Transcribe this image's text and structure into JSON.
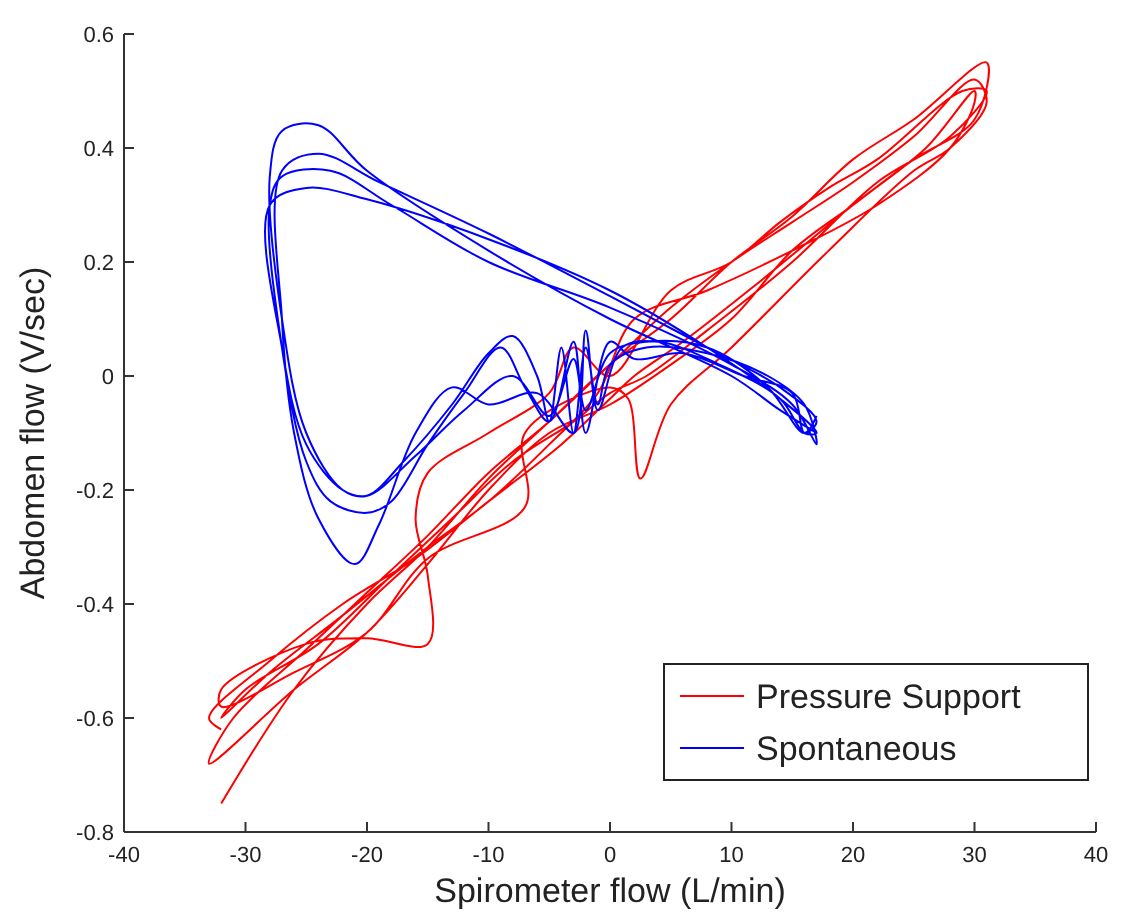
{
  "chart_data": {
    "type": "line",
    "xlabel": "Spirometer flow (L/min)",
    "ylabel": "Abdomen flow (V/sec)",
    "xlim": [
      -40,
      40
    ],
    "ylim": [
      -0.8,
      0.6
    ],
    "xticks": [
      -40,
      -30,
      -20,
      -10,
      0,
      10,
      20,
      30,
      40
    ],
    "yticks": [
      -0.8,
      -0.6,
      -0.4,
      -0.2,
      0,
      0.2,
      0.4,
      0.6
    ],
    "grid": false,
    "legend": "bottom right",
    "marker": "none",
    "line_style": "solid",
    "series": [
      {
        "name": "Pressure Support",
        "color": "#ff0000",
        "x": [
          -32,
          -26,
          -20,
          -15,
          -10,
          -5,
          0,
          5,
          10,
          15,
          20,
          25,
          31,
          30,
          25,
          20,
          15,
          10,
          5,
          0,
          -5,
          -10,
          -15,
          -20,
          -26,
          -33,
          -31,
          -25,
          -20,
          -15,
          -10,
          -5,
          0,
          5,
          10,
          15,
          20,
          25,
          30,
          31,
          28,
          25,
          18,
          10,
          5,
          2.5,
          1.5,
          0,
          -7,
          -7,
          -15,
          -20,
          -26,
          -32,
          -32,
          -25,
          -20,
          -15,
          -15,
          -16,
          -15,
          -10,
          -5,
          -3,
          0,
          5,
          10,
          14,
          18,
          22,
          29,
          31,
          28,
          22,
          15,
          8,
          3,
          0,
          -3,
          -8,
          -13,
          -18,
          -24,
          -30,
          -32,
          -28,
          -22,
          -15,
          -10,
          -5,
          -1,
          2,
          8,
          15,
          22,
          28,
          30,
          30,
          26,
          20,
          12,
          6,
          2,
          0,
          -4,
          -10,
          -16,
          -22,
          -28,
          -33,
          -32
        ],
        "values": [
          -0.75,
          -0.55,
          -0.4,
          -0.3,
          -0.18,
          -0.08,
          0.02,
          0.1,
          0.2,
          0.28,
          0.38,
          0.45,
          0.55,
          0.45,
          0.38,
          0.3,
          0.22,
          0.1,
          0.02,
          -0.05,
          -0.1,
          -0.2,
          -0.33,
          -0.45,
          -0.55,
          -0.68,
          -0.6,
          -0.48,
          -0.38,
          -0.28,
          -0.17,
          -0.08,
          0.02,
          0.12,
          0.2,
          0.27,
          0.34,
          0.42,
          0.52,
          0.48,
          0.4,
          0.36,
          0.22,
          0.05,
          -0.05,
          -0.18,
          -0.04,
          -0.02,
          -0.1,
          -0.23,
          -0.32,
          -0.45,
          -0.52,
          -0.58,
          -0.55,
          -0.47,
          -0.46,
          -0.47,
          -0.35,
          -0.25,
          -0.17,
          -0.1,
          -0.03,
          0.05,
          0.0,
          0.15,
          0.2,
          0.27,
          0.33,
          0.38,
          0.5,
          0.5,
          0.42,
          0.34,
          0.2,
          0.08,
          0.0,
          -0.03,
          -0.08,
          -0.15,
          -0.25,
          -0.35,
          -0.47,
          -0.55,
          -0.6,
          -0.52,
          -0.42,
          -0.3,
          -0.22,
          -0.12,
          -0.03,
          0.1,
          0.15,
          0.22,
          0.3,
          0.4,
          0.48,
          0.5,
          0.4,
          0.3,
          0.16,
          0.06,
          0.0,
          -0.04,
          -0.12,
          -0.22,
          -0.32,
          -0.4,
          -0.5,
          -0.6,
          -0.62
        ]
      },
      {
        "name": "Spontaneous",
        "color": "#0000ff",
        "x": [
          17,
          14,
          10,
          0,
          -10,
          -20,
          -24,
          -27,
          -28,
          -27,
          -25,
          -22,
          -20,
          -17,
          -13,
          -10,
          -8,
          -6,
          -5,
          -4,
          -3,
          -2,
          -1,
          0,
          3,
          8,
          13,
          16,
          17,
          15,
          10,
          0,
          -10,
          -18,
          -23,
          -27,
          -28,
          -27,
          -25,
          -23,
          -20,
          -18,
          -15,
          -12,
          -9,
          -7,
          -5,
          -3,
          -2,
          0,
          2,
          6,
          11,
          15,
          16,
          17,
          14,
          8,
          0,
          -10,
          -19,
          -24,
          -27,
          -27,
          -26,
          -24,
          -21,
          -19,
          -16,
          -13,
          -10,
          -6,
          -3,
          -2,
          -1,
          1,
          4,
          9,
          14,
          16,
          17,
          14,
          8,
          0,
          -10,
          -20,
          -25,
          -28,
          -27,
          -25,
          -22,
          -20,
          -16,
          -12,
          -8,
          -5,
          -3,
          -2,
          0,
          3,
          8,
          13,
          16,
          17
        ],
        "values": [
          -0.1,
          -0.06,
          0.0,
          0.1,
          0.22,
          0.36,
          0.44,
          0.43,
          0.35,
          0.1,
          -0.1,
          -0.2,
          -0.21,
          -0.15,
          -0.05,
          0.04,
          0.07,
          0.0,
          -0.08,
          0.05,
          -0.1,
          0.05,
          -0.05,
          0.02,
          0.05,
          0.04,
          0.0,
          -0.05,
          -0.12,
          -0.05,
          0.02,
          0.12,
          0.2,
          0.3,
          0.36,
          0.35,
          0.3,
          0.05,
          -0.15,
          -0.22,
          -0.24,
          -0.22,
          -0.12,
          -0.03,
          0.05,
          -0.02,
          -0.08,
          0.06,
          -0.1,
          0.06,
          0.03,
          0.04,
          0.0,
          -0.03,
          -0.1,
          -0.08,
          -0.02,
          0.05,
          0.14,
          0.25,
          0.34,
          0.39,
          0.36,
          0.1,
          -0.1,
          -0.25,
          -0.33,
          -0.26,
          -0.1,
          -0.02,
          -0.05,
          -0.03,
          -0.1,
          0.08,
          -0.06,
          0.05,
          0.06,
          0.02,
          -0.04,
          -0.1,
          -0.1,
          -0.04,
          0.05,
          0.15,
          0.24,
          0.31,
          0.33,
          0.3,
          0.05,
          -0.12,
          -0.2,
          -0.21,
          -0.14,
          -0.06,
          0.0,
          -0.07,
          0.03,
          -0.06,
          0.04,
          0.06,
          0.05,
          -0.02,
          -0.1,
          -0.07
        ]
      }
    ]
  }
}
